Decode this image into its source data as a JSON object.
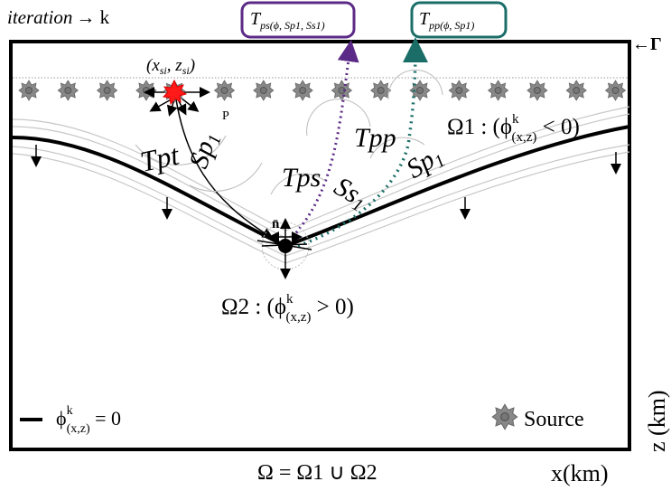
{
  "header": {
    "iteration": "iteration",
    "arrow_k": "→ k"
  },
  "tps_box": {
    "main": "T",
    "sub": "ps(ϕ, Sp1, Ss1)"
  },
  "tpp_box": {
    "main": "T",
    "sub": "pp(ϕ, Sp1)"
  },
  "boundary": "←Γ",
  "source_coord": {
    "open": "(x",
    "sub1": "si",
    "mid": ", z",
    "sub2": "si",
    "close": ")"
  },
  "p_label": "P",
  "tpt": "Tpt",
  "sp1_left": {
    "main": "Sp",
    "sub": "1"
  },
  "tps": "Tps",
  "ss1": {
    "main": "Ss",
    "sub": "1"
  },
  "tpp": "Tpp",
  "sp1_right": {
    "main": "Sp",
    "sub": "1"
  },
  "normal": "n̄",
  "omega1": {
    "main": "Ω1 : (ϕ",
    "sup": "k",
    "sub": "(x,z)",
    "rest": " < 0)"
  },
  "omega2": {
    "main": "Ω2 : (ϕ",
    "sup": "k",
    "sub": "(x,z)",
    "rest": " > 0)"
  },
  "phi_legend": {
    "main": "ϕ",
    "sup": "k",
    "sub": "(x,z)",
    "rest": " = 0"
  },
  "source_legend": "Source",
  "omega_union": "Ω = Ω1 ∪ Ω2",
  "x_axis": "x(km)",
  "z_axis": "z (km)"
}
